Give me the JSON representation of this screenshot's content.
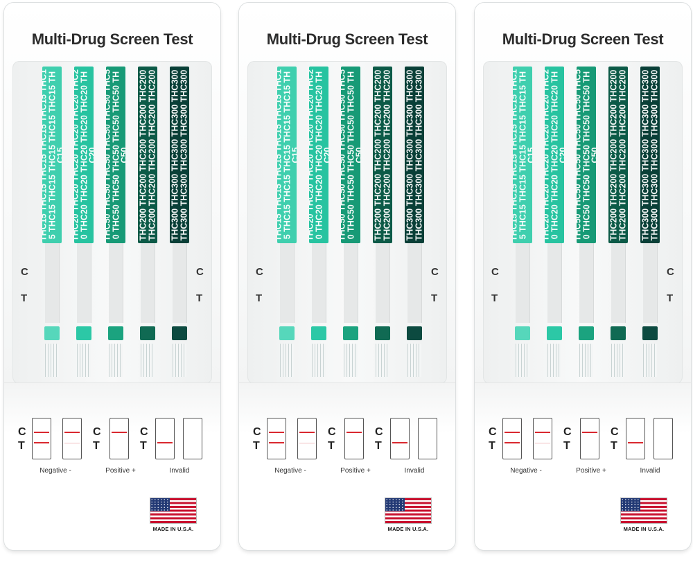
{
  "product": {
    "title": "Multi-Drug Screen Test",
    "made_in": "MADE IN U.S.A.",
    "control_letter": "C",
    "test_letter": "T"
  },
  "strips": [
    {
      "label": "THC15",
      "repeat_text": "THC15 THC15 THC15 THC15 THC15 THC15 THC15 THC15 THC15 THC15 THC15 THC15",
      "color": "#3fcfae",
      "pad_color": "#56d7bb"
    },
    {
      "label": "THC20",
      "repeat_text": "THC20 THC20 THC20 THC20 THC20 THC20 THC20 THC20 THC20 THC20 THC20 THC20",
      "color": "#27c3a0",
      "pad_color": "#2cc8a6"
    },
    {
      "label": "THC50",
      "repeat_text": "THC50 THC50 THC50 THC50 THC50 THC50 THC50 THC50 THC50 THC50 THC50 THC50",
      "color": "#179a76",
      "pad_color": "#1ba37f"
    },
    {
      "label": "THC200",
      "repeat_text": "THC200 THC200 THC200 THC200 THC200 THC200 THC200 THC200 THC200 THC200",
      "color": "#0c5a47",
      "pad_color": "#106a53"
    },
    {
      "label": "THC300",
      "repeat_text": "THC300 THC300 THC300 THC300 THC300 THC300 THC300 THC300 THC300 THC300",
      "color": "#093f37",
      "pad_color": "#0c4a40"
    }
  ],
  "results": {
    "negative_label": "Negative -",
    "positive_label": "Positive +",
    "invalid_label": "Invalid"
  },
  "colors": {
    "line_red": "#d9282f",
    "flag_red": "#c8102e",
    "flag_blue": "#233a75"
  },
  "cards_count": 3
}
